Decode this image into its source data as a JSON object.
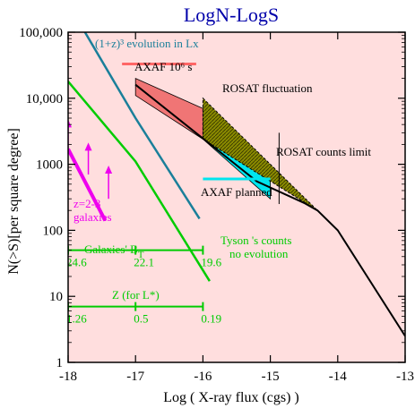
{
  "chart_data": {
    "type": "line",
    "title": "LogN-LogS",
    "xlabel": "Log ( X-ray flux (cgs) )",
    "ylabel": "N(>S)[per square degree]",
    "xlim": [
      -18,
      -13
    ],
    "ylim": [
      1,
      100000
    ],
    "y_scale": "log",
    "x_ticks": [
      -18,
      -17,
      -16,
      -15,
      -14,
      -13
    ],
    "x_tick_labels": [
      "-18",
      "-17",
      "-16",
      "-15",
      "-14",
      "-13"
    ],
    "y_ticks": [
      1,
      10,
      100,
      1000,
      10000,
      100000
    ],
    "y_tick_labels": [
      "1",
      "10",
      "100",
      "1000",
      "10,000",
      "100,000"
    ],
    "grid": false,
    "colors": {
      "background": "#ffdede",
      "evolution": "#1a7f9a",
      "galaxies": "#00cc00",
      "z23": "#ee00ee",
      "axaf_band": "#f07575",
      "axaf_line": "#ff6666",
      "cyan": "#00e5ee",
      "rosat_band": "#8a8a00",
      "observed": "#000000"
    },
    "series": [
      {
        "label": "(1+z)³ evolution in Lx",
        "x": [
          -17.75,
          -17,
          -16.05
        ],
        "y": [
          100000,
          5000,
          150
        ]
      },
      {
        "label": "Tyson 's counts no evolution",
        "x": [
          -18,
          -17,
          -15.9
        ],
        "y": [
          18000,
          1100,
          17
        ]
      },
      {
        "label": "z=2-3 galaxies",
        "x": [
          -18,
          -17.45
        ],
        "y": [
          1700,
          140
        ]
      },
      {
        "label": "Observed counts",
        "x": [
          -17,
          -15.2,
          -14.5,
          -14.3,
          -14,
          -13
        ],
        "y": [
          16000,
          550,
          260,
          200,
          100,
          2.5
        ]
      }
    ],
    "bands": [
      {
        "label": "AXAF 10⁶ s",
        "x": [
          -17,
          -16
        ],
        "upper": [
          20000,
          7000
        ],
        "lower": [
          11000,
          2400
        ]
      },
      {
        "label": "cyan",
        "x": [
          -16,
          -15
        ],
        "upper": [
          7000,
          550
        ],
        "lower": [
          2400,
          300
        ]
      },
      {
        "label": "ROSAT fluctuation",
        "x": [
          -16,
          -14.3
        ],
        "upper": [
          10000,
          200
        ],
        "lower": [
          2400,
          200
        ]
      }
    ],
    "z23_arrows": [
      {
        "x": -18,
        "y_from": 1700,
        "y_to": 4500
      },
      {
        "x": -17.7,
        "y_from": 700,
        "y_to": 2000
      },
      {
        "x": -17.4,
        "y_from": 300,
        "y_to": 900
      }
    ],
    "axaf_planned": {
      "label": "AXAF planned",
      "x": [
        -16,
        -15
      ],
      "y": 600
    },
    "rosat_limit": {
      "label": "ROSAT  counts limit",
      "x": -14.87,
      "y_range": [
        250,
        3000
      ]
    },
    "scales": [
      {
        "label": "Galaxies' B",
        "subscript": "T",
        "y": 50,
        "ticks": [
          {
            "x": -18,
            "label": "24.6"
          },
          {
            "x": -17,
            "label": "22.1"
          },
          {
            "x": -16,
            "label": "19.6"
          }
        ]
      },
      {
        "label": "Z (for L*)",
        "y": 7,
        "ticks": [
          {
            "x": -18,
            "label": "1.26"
          },
          {
            "x": -17,
            "label": "0.5"
          },
          {
            "x": -16,
            "label": "0.19"
          }
        ]
      }
    ],
    "annotations": {
      "evolution": "(1+z)³ evolution in Lx",
      "axaf": "AXAF 10⁶ s",
      "rosat_fluct": "ROSAT fluctuation",
      "rosat_limit": "ROSAT  counts limit",
      "axaf_planned": "AXAF planned",
      "z23_line1": "z=2-3",
      "z23_line2": "galaxies",
      "tyson_line1": "Tyson 's counts",
      "tyson_line2": "no evolution",
      "galaxies_bt": "Galaxies' B",
      "galaxies_bt_sub": "T",
      "zfor": "Z (for L*)"
    }
  }
}
